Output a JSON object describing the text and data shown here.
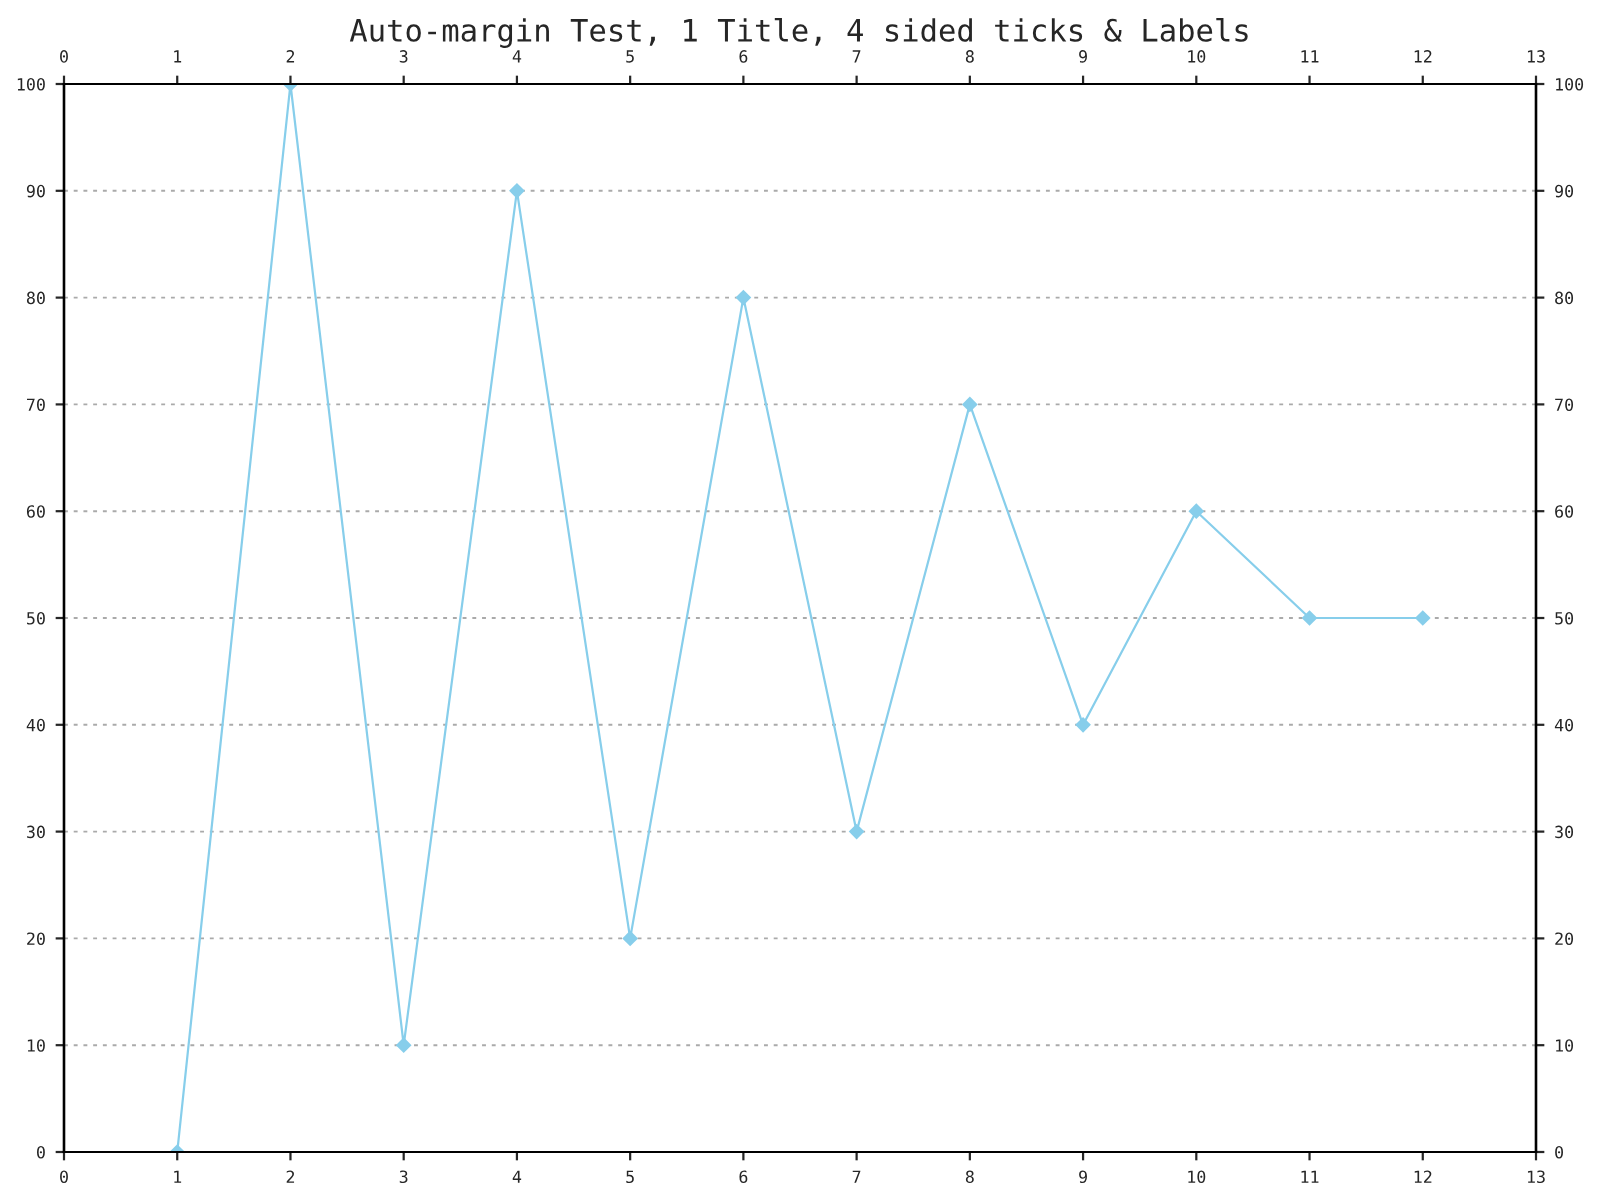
{
  "chart_data": {
    "type": "line",
    "title": "Auto-margin Test, 1 Title, 4 sided ticks & Labels",
    "x": [
      1,
      2,
      3,
      4,
      5,
      6,
      7,
      8,
      9,
      10,
      11,
      12
    ],
    "series": [
      {
        "color": "#87ceeb",
        "values": [
          0,
          100,
          10,
          90,
          20,
          80,
          30,
          70,
          40,
          60,
          50,
          50
        ]
      }
    ],
    "xlim": [
      0,
      13
    ],
    "xticks": [
      0,
      1,
      2,
      3,
      4,
      5,
      6,
      7,
      8,
      9,
      10,
      11,
      12,
      13
    ],
    "x2lim": [
      0,
      13
    ],
    "x2ticks": [
      0,
      1,
      2,
      3,
      4,
      5,
      6,
      7,
      8,
      9,
      10,
      11,
      12,
      13
    ],
    "ylim": [
      0,
      100
    ],
    "yticks": [
      0,
      10,
      20,
      30,
      40,
      50,
      60,
      70,
      80,
      90,
      100
    ],
    "y2lim": [
      0,
      100
    ],
    "y2ticks": [
      0,
      10,
      20,
      30,
      40,
      50,
      60,
      70,
      80,
      90,
      100
    ],
    "grid": "y",
    "marker": "diamond",
    "line_style": "solid"
  }
}
